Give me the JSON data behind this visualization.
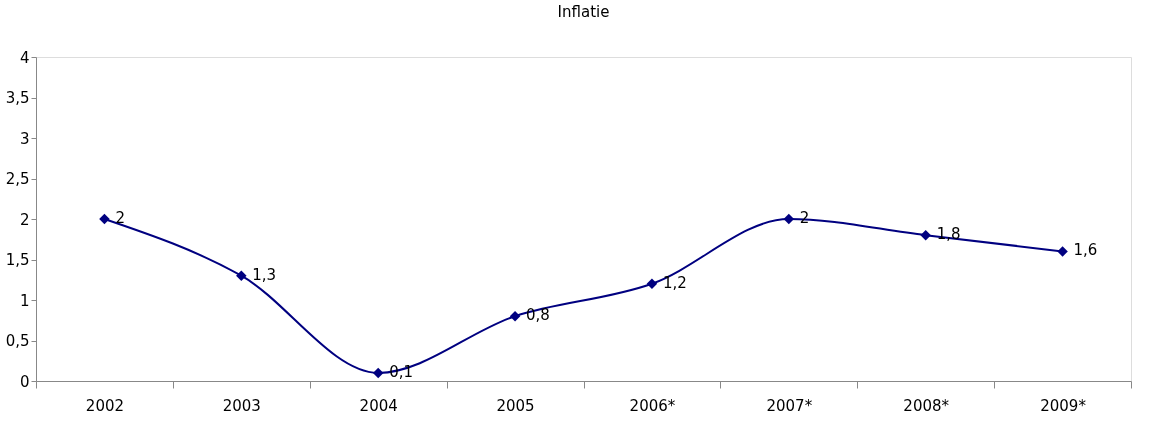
{
  "chart_data": {
    "type": "line",
    "title": "Inflatie",
    "categories": [
      "2002",
      "2003",
      "2004",
      "2005",
      "2006*",
      "2007*",
      "2008*",
      "2009*"
    ],
    "series": [
      {
        "color": "#000080",
        "values": [
          2,
          1.3,
          0.1,
          0.8,
          1.2,
          2,
          1.8,
          1.6
        ],
        "value_labels": [
          "2",
          "1,3",
          "0,1",
          "0,8",
          "1,2",
          "2",
          "1,8",
          "1,6"
        ]
      }
    ],
    "ylim": [
      0,
      4
    ],
    "yticks": [
      0,
      {
        "value": 0.5,
        "label": "0,5"
      },
      1,
      {
        "value": 1.5,
        "label": "1,5"
      },
      2,
      {
        "value": 2.5,
        "label": "2,5"
      },
      3,
      {
        "value": 3.5,
        "label": "3,5"
      },
      4
    ],
    "marker": "diamond",
    "line_style": "solid",
    "grid": false
  }
}
